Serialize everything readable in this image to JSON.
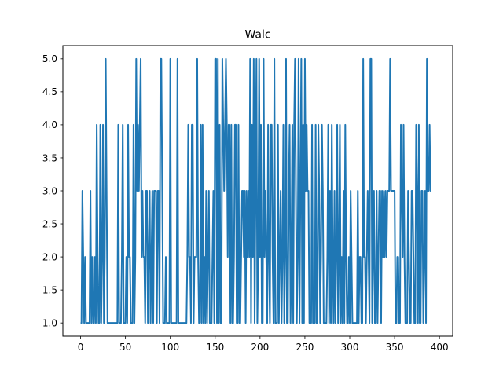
{
  "chart_data": {
    "type": "line",
    "title": "Walc",
    "xlabel": "",
    "ylabel": "",
    "xlim": [
      -19.75,
      414.75
    ],
    "ylim": [
      0.8,
      5.2
    ],
    "xticks": [
      0,
      50,
      100,
      150,
      200,
      250,
      300,
      350,
      400
    ],
    "yticks": [
      1.0,
      1.5,
      2.0,
      2.5,
      3.0,
      3.5,
      4.0,
      4.5,
      5.0
    ],
    "ytick_labels": [
      "1.0",
      "1.5",
      "2.0",
      "2.5",
      "3.0",
      "3.5",
      "4.0",
      "4.5",
      "5.0"
    ],
    "grid": false,
    "line_color": "#1f77b4",
    "series": [
      {
        "x_start": 0,
        "values": [
          1,
          1,
          3,
          2,
          1,
          2,
          1,
          1,
          1,
          1,
          1,
          3,
          1,
          2,
          1,
          1,
          2,
          1,
          4,
          2,
          1,
          1,
          4,
          1,
          2,
          4,
          1,
          2,
          5,
          3,
          1,
          1,
          1,
          1,
          1,
          1,
          1,
          1,
          1,
          1,
          1,
          1,
          4,
          1,
          1,
          1,
          2,
          4,
          1,
          1,
          1,
          2,
          1,
          4,
          2,
          2,
          1,
          1,
          1,
          4,
          1,
          2,
          5,
          3,
          4,
          3,
          4,
          5,
          2,
          3,
          2,
          2,
          1,
          3,
          3,
          1,
          2,
          3,
          1,
          2,
          3,
          1,
          3,
          3,
          3,
          1,
          3,
          3,
          1,
          5,
          5,
          3,
          1,
          1,
          1,
          2,
          1,
          1,
          1,
          1,
          5,
          1,
          1,
          1,
          1,
          1,
          1,
          1,
          5,
          1,
          1,
          1,
          1,
          1,
          1,
          1,
          1,
          1,
          1,
          2,
          4,
          2,
          2,
          1,
          4,
          4,
          1,
          2,
          2,
          2,
          5,
          2,
          1,
          1,
          4,
          1,
          4,
          1,
          2,
          1,
          3,
          1,
          2,
          3,
          1,
          1,
          1,
          2,
          3,
          1,
          5,
          5,
          1,
          5,
          1,
          4,
          1,
          1,
          5,
          4,
          3,
          4,
          5,
          4,
          2,
          4,
          4,
          1,
          4,
          1,
          1,
          2,
          4,
          4,
          1,
          1,
          4,
          1,
          1,
          2,
          3,
          3,
          2,
          3,
          1,
          3,
          2,
          3,
          2,
          5,
          1,
          4,
          2,
          5,
          1,
          3,
          5,
          1,
          2,
          5,
          2,
          4,
          1,
          1,
          5,
          2,
          3,
          2,
          1,
          4,
          2,
          1,
          4,
          4,
          2,
          1,
          5,
          1,
          1,
          1,
          4,
          1,
          2,
          3,
          1,
          2,
          4,
          1,
          2,
          5,
          1,
          1,
          3,
          4,
          1,
          2,
          4,
          1,
          4,
          5,
          3,
          1,
          2,
          5,
          1,
          3,
          5,
          1,
          4,
          1,
          5,
          3,
          4,
          3,
          3,
          1,
          1,
          1,
          4,
          1,
          1,
          1,
          4,
          1,
          1,
          4,
          3,
          1,
          2,
          4,
          3,
          1,
          1,
          1,
          1,
          2,
          4,
          1,
          3,
          1,
          4,
          2,
          1,
          3,
          1,
          2,
          4,
          1,
          2,
          4,
          1,
          2,
          1,
          3,
          1,
          4,
          2,
          1,
          1,
          2,
          1,
          3,
          2,
          1,
          1,
          1,
          1,
          1,
          1,
          3,
          1,
          2,
          2,
          1,
          1,
          5,
          2,
          2,
          1,
          2,
          3,
          2,
          1,
          5,
          5,
          1,
          2,
          3,
          1,
          1,
          3,
          1,
          2,
          3,
          3,
          1,
          3,
          2,
          3,
          2,
          3,
          2,
          3,
          3,
          3,
          5,
          3,
          3,
          3,
          3,
          3,
          1,
          1,
          2,
          2,
          1,
          1,
          4,
          3,
          2,
          4,
          2,
          1,
          1,
          1,
          3,
          2,
          1,
          1,
          3,
          3,
          2,
          1,
          1,
          4,
          3,
          1,
          4,
          1,
          1,
          3,
          3,
          1,
          2,
          3,
          1,
          5,
          3,
          3,
          4,
          3,
          3
        ]
      }
    ]
  }
}
